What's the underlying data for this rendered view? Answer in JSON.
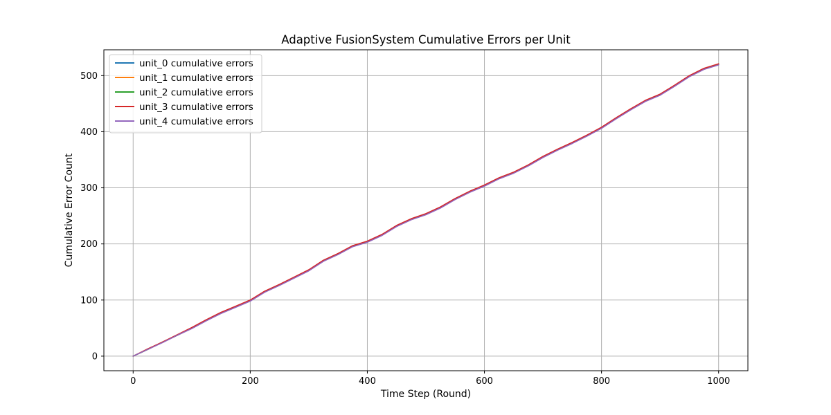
{
  "chart_data": {
    "type": "line",
    "title": "Adaptive FusionSystem Cumulative Errors per Unit",
    "xlabel": "Time Step (Round)",
    "ylabel": "Cumulative Error Count",
    "xlim": [
      -50,
      1050
    ],
    "ylim": [
      -26,
      546
    ],
    "x_ticks": [
      0,
      200,
      400,
      600,
      800,
      1000
    ],
    "y_ticks": [
      0,
      100,
      200,
      300,
      400,
      500
    ],
    "grid": true,
    "legend_position": "top-left",
    "x": [
      0,
      25,
      50,
      75,
      100,
      125,
      150,
      175,
      200,
      225,
      250,
      275,
      300,
      325,
      350,
      375,
      400,
      425,
      450,
      475,
      500,
      525,
      550,
      575,
      600,
      625,
      650,
      675,
      700,
      725,
      750,
      775,
      800,
      825,
      850,
      875,
      900,
      925,
      950,
      975,
      1000
    ],
    "series": [
      {
        "name": "unit_0 cumulative errors",
        "color": "#1f77b4",
        "values": [
          0,
          12,
          25,
          37,
          50,
          64,
          77,
          88,
          99,
          115,
          127,
          140,
          153,
          170,
          182,
          196,
          204,
          216,
          232,
          244,
          253,
          265,
          280,
          293,
          304,
          317,
          327,
          340,
          355,
          368,
          380,
          393,
          407,
          424,
          440,
          455,
          466,
          482,
          499,
          512,
          520
        ]
      },
      {
        "name": "unit_1 cumulative errors",
        "color": "#ff7f0e",
        "values": [
          0,
          12,
          25,
          37,
          50,
          64,
          77,
          88,
          99,
          115,
          127,
          140,
          153,
          170,
          182,
          196,
          204,
          216,
          232,
          244,
          253,
          265,
          280,
          293,
          304,
          317,
          327,
          340,
          355,
          368,
          380,
          393,
          407,
          424,
          440,
          455,
          466,
          482,
          499,
          512,
          520
        ]
      },
      {
        "name": "unit_2 cumulative errors",
        "color": "#2ca02c",
        "values": [
          0,
          12,
          25,
          37,
          50,
          64,
          77,
          88,
          99,
          115,
          127,
          140,
          153,
          170,
          182,
          196,
          204,
          216,
          232,
          244,
          253,
          265,
          280,
          293,
          304,
          317,
          327,
          340,
          355,
          368,
          380,
          393,
          407,
          424,
          440,
          455,
          466,
          482,
          499,
          512,
          520
        ]
      },
      {
        "name": "unit_3 cumulative errors",
        "color": "#d62728",
        "values": [
          0,
          13,
          25,
          38,
          51,
          65,
          78,
          89,
          100,
          116,
          128,
          141,
          154,
          171,
          183,
          197,
          205,
          217,
          233,
          245,
          254,
          266,
          281,
          294,
          305,
          318,
          328,
          341,
          356,
          369,
          381,
          394,
          408,
          425,
          441,
          456,
          467,
          483,
          500,
          513,
          521
        ]
      },
      {
        "name": "unit_4 cumulative errors",
        "color": "#9467bd",
        "values": [
          0,
          12,
          24,
          37,
          49,
          63,
          76,
          87,
          98,
          114,
          126,
          139,
          152,
          169,
          181,
          195,
          203,
          215,
          231,
          243,
          252,
          264,
          279,
          292,
          303,
          316,
          326,
          339,
          354,
          367,
          379,
          392,
          406,
          423,
          439,
          454,
          465,
          481,
          498,
          511,
          519
        ]
      }
    ]
  }
}
